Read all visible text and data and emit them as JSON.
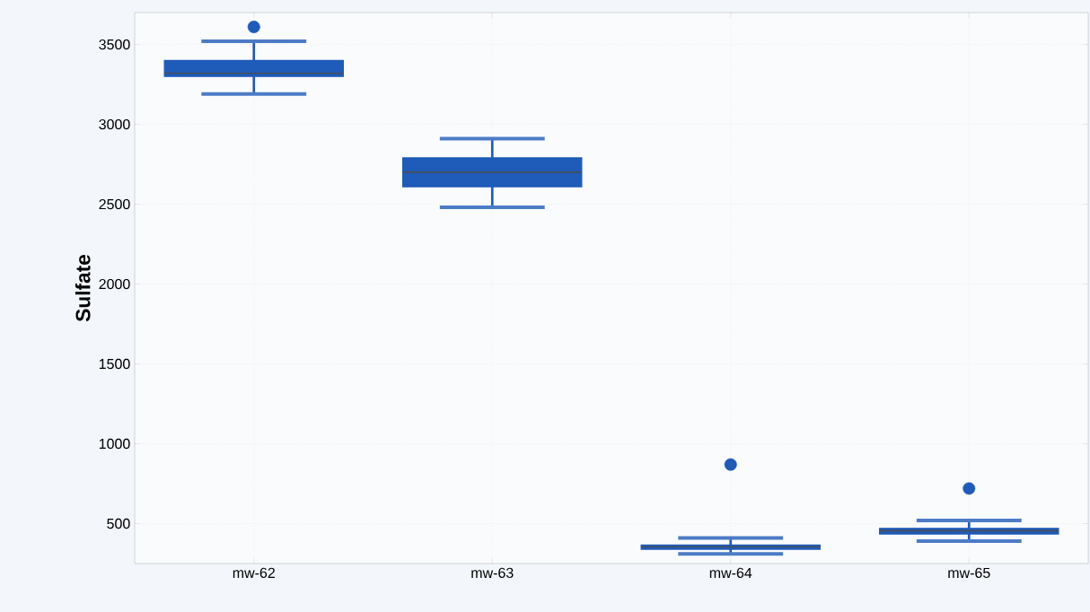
{
  "chart_data": {
    "type": "box",
    "ylabel": "Sulfate",
    "categories": [
      "mw-62",
      "mw-63",
      "mw-64",
      "mw-65"
    ],
    "color": "#1f5bb8",
    "boxes": [
      {
        "low": 3190,
        "q1": 3300,
        "median": 3320,
        "q3": 3400,
        "high": 3520,
        "outliers": [
          3610
        ]
      },
      {
        "low": 2480,
        "q1": 2610,
        "median": 2700,
        "q3": 2790,
        "high": 2910
      },
      {
        "low": 310,
        "q1": 340,
        "median": 355,
        "q3": 365,
        "high": 410,
        "outliers": [
          870
        ]
      },
      {
        "low": 390,
        "q1": 435,
        "median": 455,
        "q3": 470,
        "high": 520,
        "outliers": [
          720
        ]
      }
    ],
    "ylim": [
      250,
      3700
    ],
    "yticks": [
      500,
      1000,
      1500,
      2000,
      2500,
      3000,
      3500
    ],
    "grid": true
  }
}
